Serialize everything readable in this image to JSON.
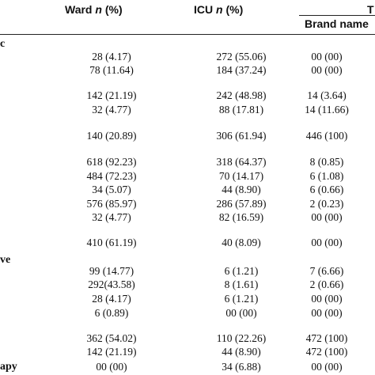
{
  "header": {
    "ward_label": "Ward",
    "icu_label": "ICU",
    "n_suffix": "n",
    "pct_suffix": "(%)",
    "total_fragment": "T",
    "brand_name": "Brand name"
  },
  "row_labels": [
    "c",
    "ve",
    "apy"
  ],
  "rows": [
    {
      "ward": "28 (4.17)",
      "icu": "272 (55.06)",
      "brand": "00 (00)"
    },
    {
      "ward": "78 (11.64)",
      "icu": "184 (37.24)",
      "brand": "00 (00)"
    },
    {
      "ward": "142 (21.19)",
      "icu": "242 (48.98)",
      "brand": "14 (3.64)"
    },
    {
      "ward": "32 (4.77)",
      "icu": "88 (17.81)",
      "brand": "14 (11.66)"
    },
    {
      "ward": "140 (20.89)",
      "icu": "306 (61.94)",
      "brand": "446 (100)"
    },
    {
      "ward": "618 (92.23)",
      "icu": "318 (64.37)",
      "brand": "8 (0.85)"
    },
    {
      "ward": "484 (72.23)",
      "icu": "70 (14.17)",
      "brand": "6 (1.08)"
    },
    {
      "ward": "34 (5.07)",
      "icu": "44 (8.90)",
      "brand": "6 (0.66)"
    },
    {
      "ward": "576 (85.97)",
      "icu": "286 (57.89)",
      "brand": "2 (0.23)"
    },
    {
      "ward": "32 (4.77)",
      "icu": "82 (16.59)",
      "brand": "00 (00)"
    },
    {
      "ward": "410 (61.19)",
      "icu": "40 (8.09)",
      "brand": "00 (00)"
    },
    {
      "ward": "99 (14.77)",
      "icu": "6 (1.21)",
      "brand": "7 (6.66)"
    },
    {
      "ward": "292(43.58)",
      "icu": "8 (1.61)",
      "brand": "2 (0.66)"
    },
    {
      "ward": "28 (4.17)",
      "icu": "6 (1.21)",
      "brand": "00 (00)"
    },
    {
      "ward": "6 (0.89)",
      "icu": "00 (00)",
      "brand": "00 (00)"
    },
    {
      "ward": "362 (54.02)",
      "icu": "110 (22.26)",
      "brand": "472 (100)"
    },
    {
      "ward": "142 (21.19)",
      "icu": "44 (8.90)",
      "brand": "472 (100)"
    },
    {
      "ward": "00 (00)",
      "icu": "34 (6.88)",
      "brand": "00 (00)"
    }
  ]
}
